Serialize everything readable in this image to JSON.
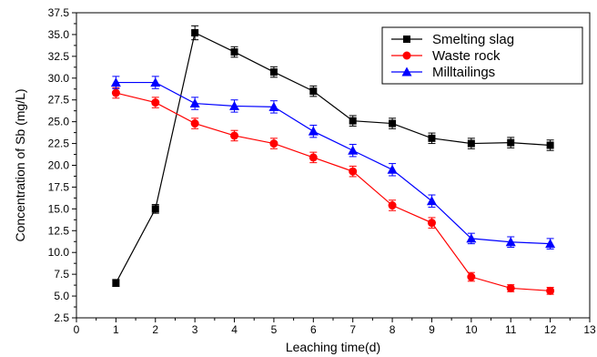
{
  "chart_data": {
    "type": "line",
    "title": "",
    "xlabel": "Leaching time(d)",
    "ylabel": "Concentration of Sb (mg/L)",
    "xlim": [
      0,
      13
    ],
    "ylim": [
      2.5,
      37.5
    ],
    "x_ticks": [
      0,
      1,
      2,
      3,
      4,
      5,
      6,
      7,
      8,
      9,
      10,
      11,
      12,
      13
    ],
    "y_ticks": [
      2.5,
      5.0,
      7.5,
      10.0,
      12.5,
      15.0,
      17.5,
      20.0,
      22.5,
      25.0,
      27.5,
      30.0,
      32.5,
      35.0,
      37.5
    ],
    "y_tick_labels": [
      "2.5",
      "5.0",
      "7.5",
      "10.0",
      "12.5",
      "15.0",
      "17.5",
      "20.0",
      "22.5",
      "25.0",
      "27.5",
      "30.0",
      "32.5",
      "35.0",
      "37.5"
    ],
    "grid": false,
    "legend_position": "top-right",
    "x": [
      1,
      2,
      3,
      4,
      5,
      6,
      7,
      8,
      9,
      10,
      11,
      12
    ],
    "series": [
      {
        "name": "Smelting slag",
        "color": "#000000",
        "marker": "square",
        "values": [
          6.5,
          15.0,
          35.2,
          33.0,
          30.7,
          28.5,
          25.1,
          24.8,
          23.1,
          22.5,
          22.6,
          22.3
        ],
        "error": [
          0.4,
          0.5,
          0.8,
          0.6,
          0.6,
          0.6,
          0.6,
          0.6,
          0.6,
          0.6,
          0.6,
          0.6
        ]
      },
      {
        "name": "Waste rock",
        "color": "#ff0000",
        "marker": "circle",
        "values": [
          28.3,
          27.2,
          24.8,
          23.4,
          22.5,
          20.9,
          19.3,
          15.4,
          13.4,
          7.2,
          5.9,
          5.6
        ],
        "error": [
          0.6,
          0.6,
          0.6,
          0.6,
          0.6,
          0.6,
          0.6,
          0.6,
          0.6,
          0.5,
          0.4,
          0.4
        ]
      },
      {
        "name": "Milltailings",
        "color": "#0000ff",
        "marker": "triangle",
        "values": [
          29.5,
          29.5,
          27.1,
          26.8,
          26.7,
          23.9,
          21.7,
          19.5,
          15.9,
          11.6,
          11.2,
          11.0
        ],
        "error": [
          0.7,
          0.7,
          0.7,
          0.7,
          0.7,
          0.7,
          0.7,
          0.7,
          0.7,
          0.6,
          0.6,
          0.6
        ]
      }
    ]
  }
}
